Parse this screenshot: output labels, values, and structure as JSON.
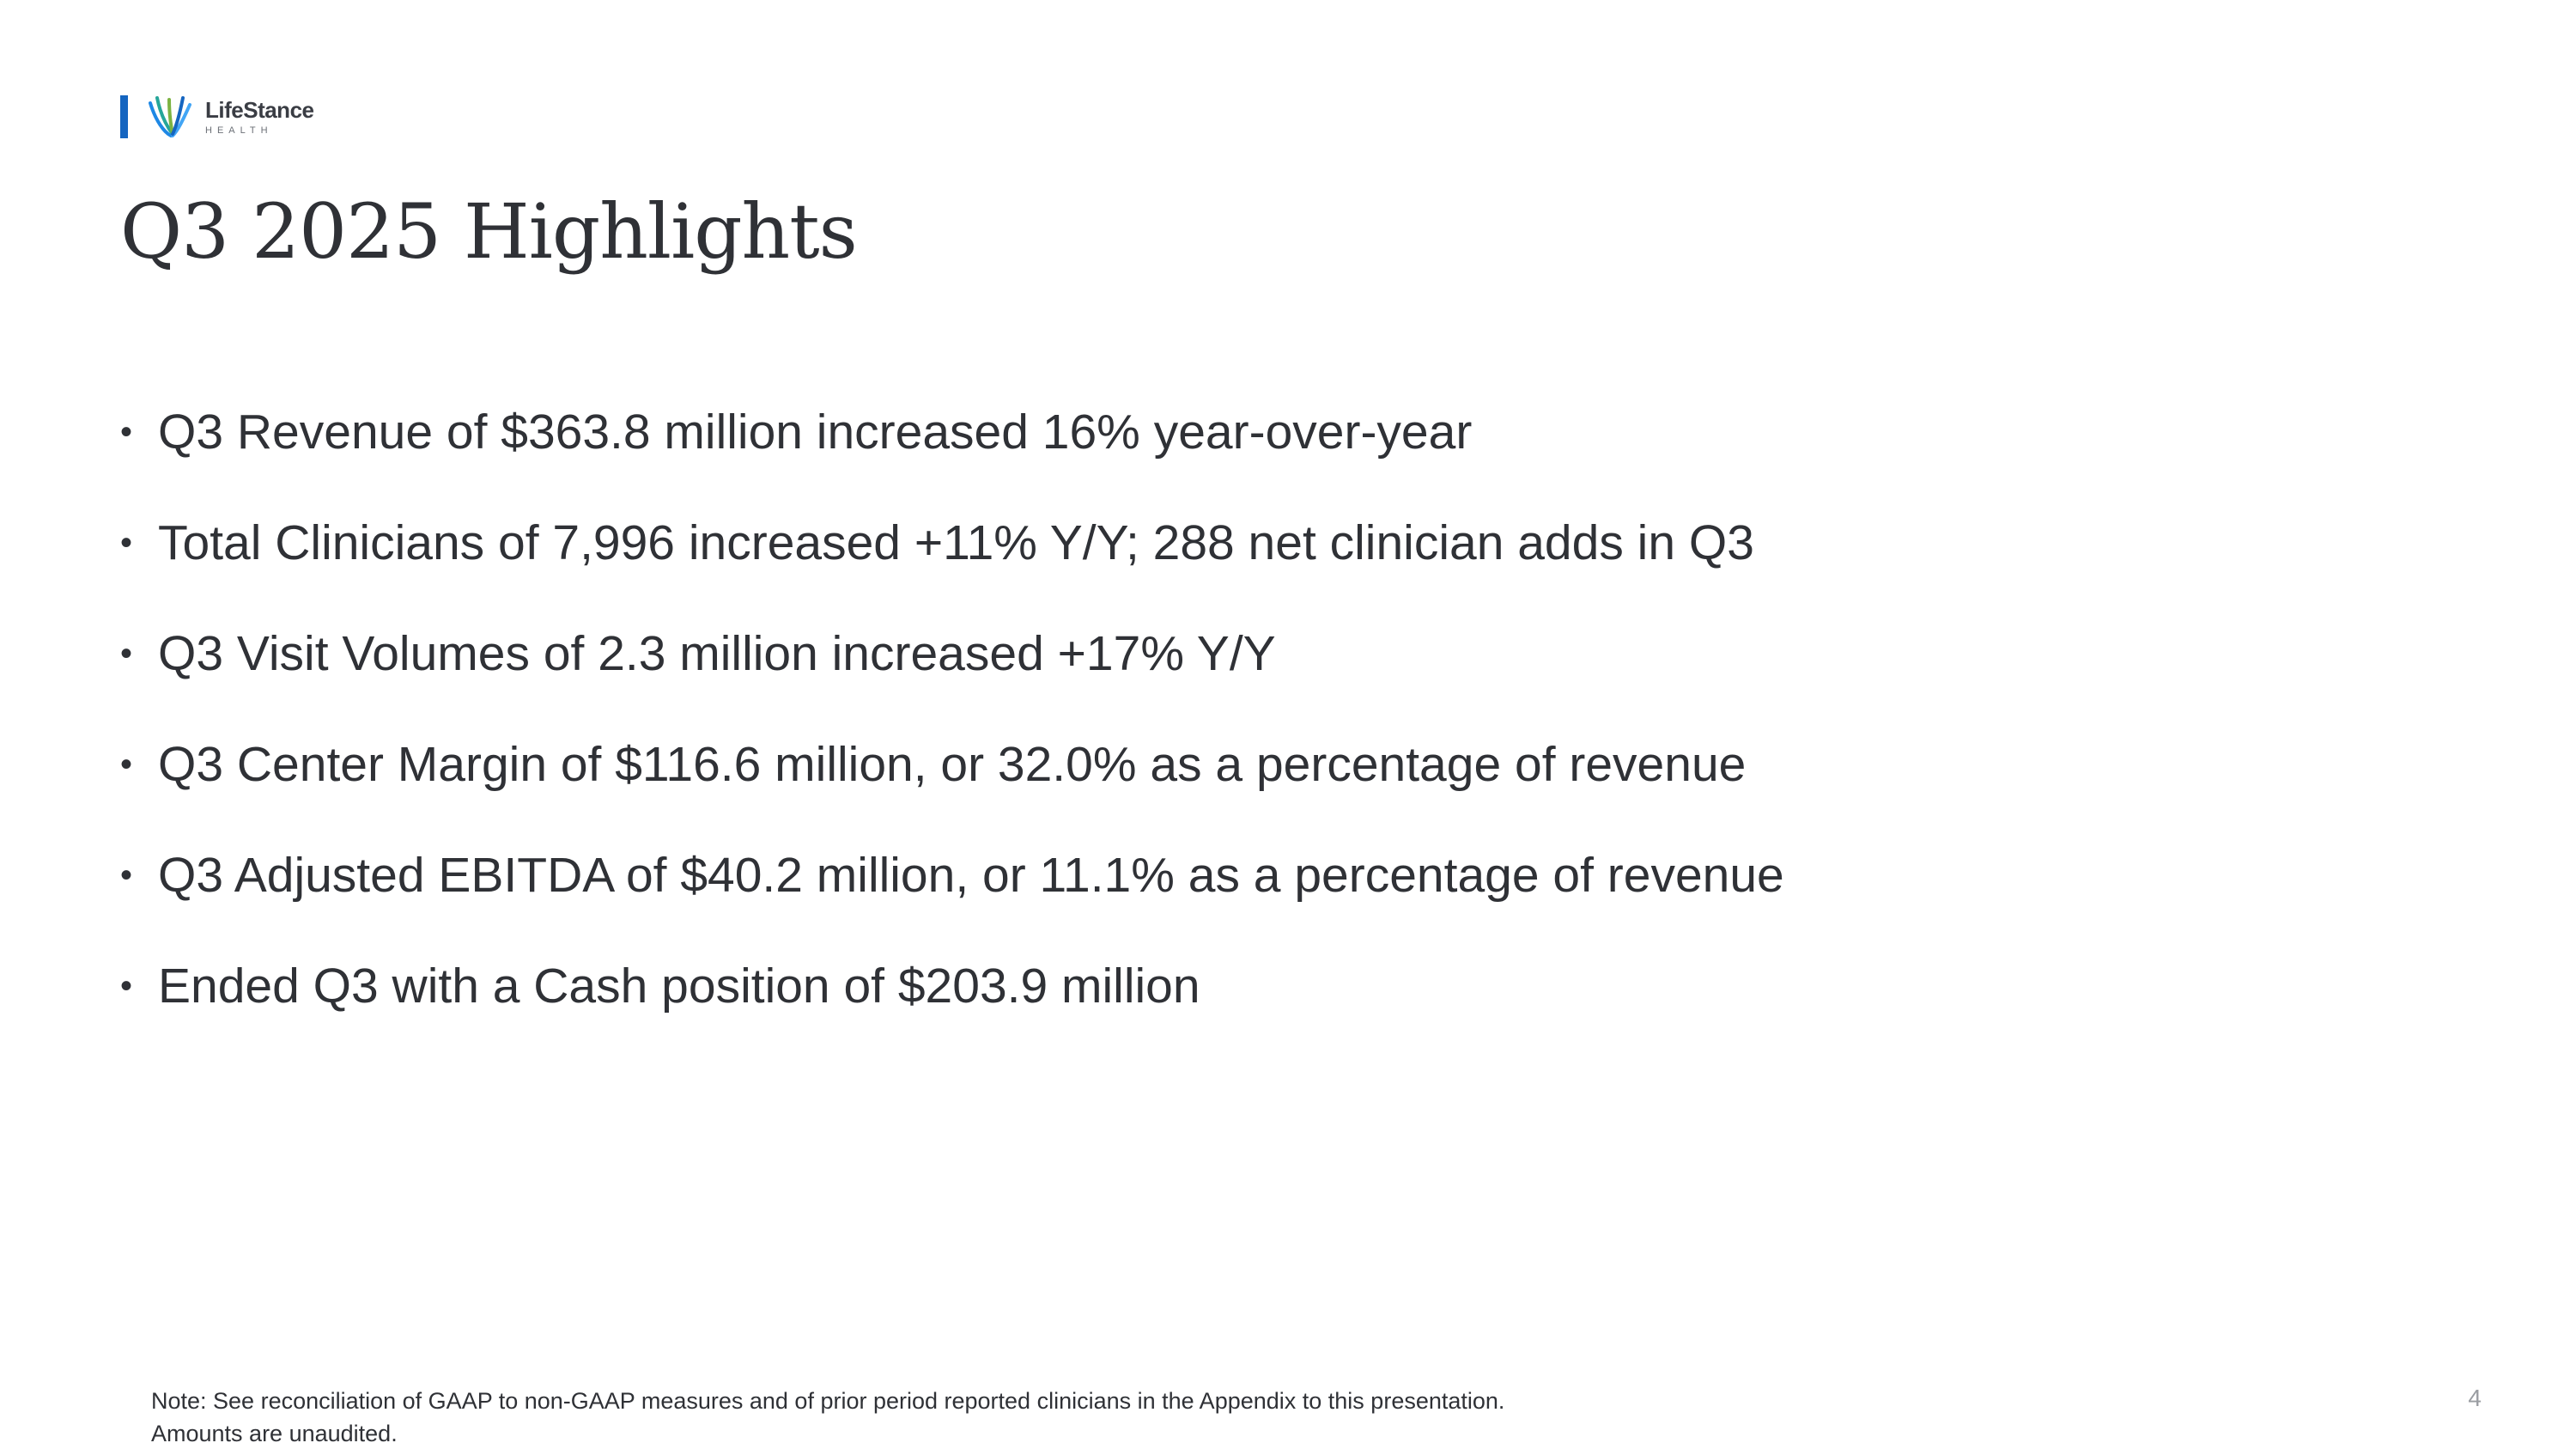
{
  "logo": {
    "name": "LifeStance",
    "sub": "HEALTH",
    "bar_color": "#1565c0"
  },
  "title": "Q3 2025 Highlights",
  "bullets": [
    "Q3 Revenue of $363.8 million increased 16% year-over-year",
    "Total Clinicians of 7,996 increased +11% Y/Y; 288 net clinician adds in Q3",
    "Q3 Visit Volumes of 2.3 million increased +17% Y/Y",
    "Q3 Center Margin of $116.6 million, or 32.0% as a percentage of revenue",
    "Q3 Adjusted EBITDA of $40.2 million, or 11.1% as a percentage of revenue",
    "Ended Q3 with a Cash position of $203.9 million"
  ],
  "footnote": {
    "line1": "Note:  See reconciliation of GAAP to non-GAAP measures and of prior period reported clinicians in the Appendix to this presentation.",
    "line2": "Amounts are unaudited."
  },
  "page_number": "4"
}
